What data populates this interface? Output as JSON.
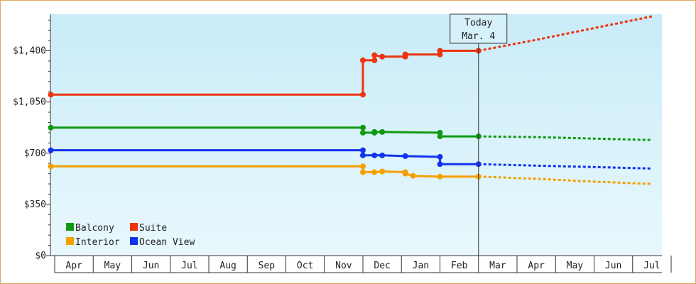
{
  "chart_data": {
    "type": "line",
    "title": "",
    "xlabel": "",
    "ylabel": "",
    "ylim": [
      0,
      1650
    ],
    "y_ticks": [
      0,
      350,
      700,
      1050,
      1400
    ],
    "y_tick_labels": [
      "$0",
      "$350",
      "$700",
      "$1,050",
      "$1,400"
    ],
    "x_ticks": [
      {
        "label": "Apr",
        "month": 0
      },
      {
        "label": "May",
        "month": 1
      },
      {
        "label": "Jun",
        "month": 2
      },
      {
        "label": "Jul",
        "month": 3
      },
      {
        "label": "Aug",
        "month": 4
      },
      {
        "label": "Sep",
        "month": 5
      },
      {
        "label": "Oct",
        "month": 6
      },
      {
        "label": "Nov",
        "month": 7
      },
      {
        "label": "Dec",
        "month": 8
      },
      {
        "label": "Jan",
        "month": 9
      },
      {
        "label": "Feb",
        "month": 10
      },
      {
        "label": "Mar",
        "month": 11
      },
      {
        "label": "Apr",
        "month": 12
      },
      {
        "label": "May",
        "month": 13
      },
      {
        "label": "Jun",
        "month": 14
      },
      {
        "label": "Jul",
        "month": 15
      }
    ],
    "today_label_line1": "Today",
    "today_label_line2": "Mar. 4",
    "today_x": 11.0,
    "legend_placement": "bottom-left",
    "series": [
      {
        "name": "Balcony",
        "color": "#119911",
        "points": [
          [
            -0.1,
            875
          ],
          [
            8.0,
            875
          ],
          [
            8.0,
            840
          ],
          [
            8.3,
            840
          ],
          [
            8.3,
            845
          ],
          [
            8.5,
            845
          ],
          [
            10.0,
            840
          ],
          [
            10.0,
            815
          ],
          [
            11.0,
            815
          ]
        ],
        "projection": [
          [
            11.0,
            815
          ],
          [
            12.5,
            810
          ],
          [
            14.0,
            800
          ],
          [
            15.5,
            790
          ]
        ]
      },
      {
        "name": "Suite",
        "color": "#ee3311",
        "points": [
          [
            -0.1,
            1100
          ],
          [
            8.0,
            1100
          ],
          [
            8.0,
            1335
          ],
          [
            8.3,
            1335
          ],
          [
            8.3,
            1370
          ],
          [
            8.5,
            1360
          ],
          [
            9.1,
            1360
          ],
          [
            9.1,
            1375
          ],
          [
            10.0,
            1375
          ],
          [
            10.0,
            1400
          ],
          [
            11.0,
            1400
          ]
        ],
        "projection": [
          [
            11.0,
            1400
          ],
          [
            12.5,
            1475
          ],
          [
            14.0,
            1555
          ],
          [
            15.5,
            1635
          ]
        ]
      },
      {
        "name": "Interior",
        "color": "#f5a000",
        "points": [
          [
            -0.1,
            610
          ],
          [
            8.0,
            610
          ],
          [
            8.0,
            570
          ],
          [
            8.3,
            570
          ],
          [
            8.5,
            575
          ],
          [
            9.1,
            570
          ],
          [
            9.1,
            560
          ],
          [
            9.3,
            545
          ],
          [
            10.0,
            540
          ],
          [
            11.0,
            540
          ]
        ],
        "projection": [
          [
            11.0,
            540
          ],
          [
            12.5,
            525
          ],
          [
            14.0,
            505
          ],
          [
            15.5,
            490
          ]
        ]
      },
      {
        "name": "Ocean View",
        "color": "#1133ee",
        "points": [
          [
            -0.1,
            720
          ],
          [
            8.0,
            720
          ],
          [
            8.0,
            685
          ],
          [
            8.3,
            685
          ],
          [
            8.5,
            685
          ],
          [
            9.1,
            680
          ],
          [
            10.0,
            675
          ],
          [
            10.0,
            625
          ],
          [
            11.0,
            625
          ]
        ],
        "projection": [
          [
            11.0,
            625
          ],
          [
            12.5,
            615
          ],
          [
            14.0,
            605
          ],
          [
            15.5,
            595
          ]
        ]
      }
    ],
    "legend": [
      {
        "name": "Balcony",
        "color": "#119911"
      },
      {
        "name": "Suite",
        "color": "#ee3311"
      },
      {
        "name": "Interior",
        "color": "#f5a000"
      },
      {
        "name": "Ocean View",
        "color": "#1133ee"
      }
    ]
  }
}
